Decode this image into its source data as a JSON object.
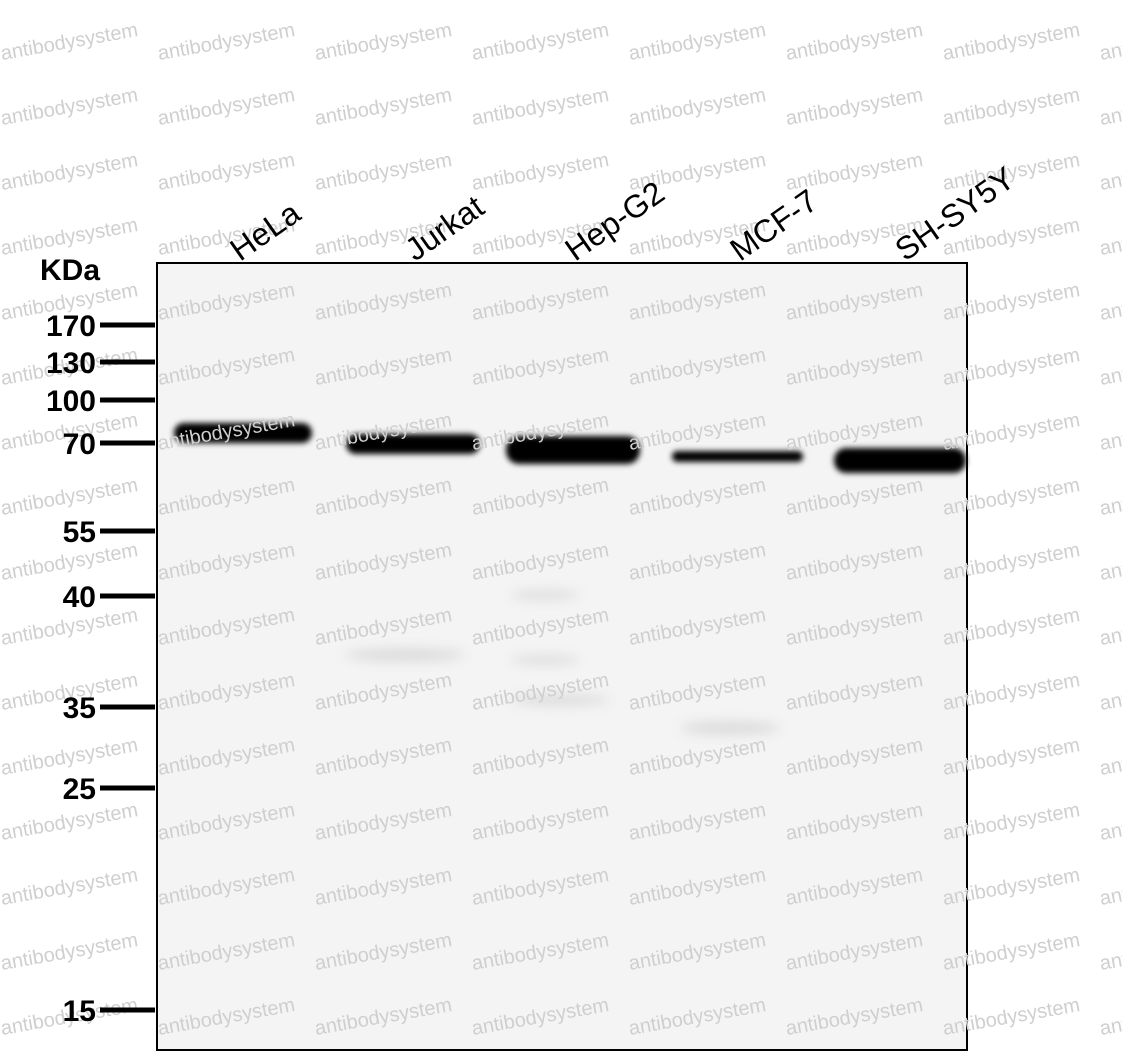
{
  "axis_label": "KDa",
  "lanes": [
    "HeLa",
    "Jurkat",
    "Hep-G2",
    "MCF-7",
    "SH-SY5Y"
  ],
  "markers": [
    170,
    130,
    100,
    70,
    55,
    40,
    35,
    25,
    15
  ],
  "watermark": "antibodysystem"
}
